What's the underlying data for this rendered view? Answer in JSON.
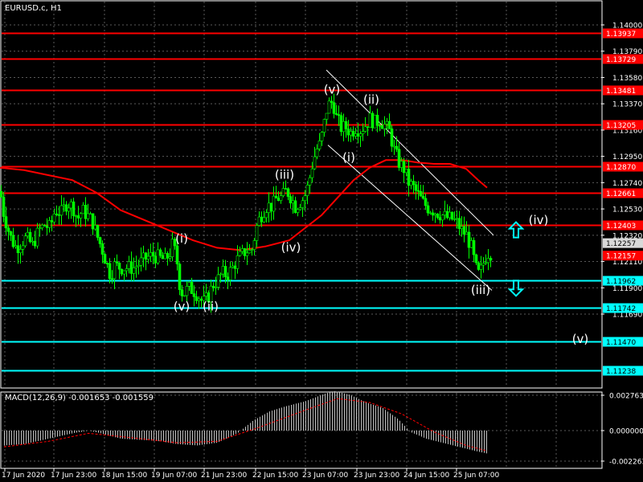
{
  "header": {
    "symbol": "EURUSD.c, H1"
  },
  "indicator": {
    "label": "MACD(12,26,9) -0.001653 -0.001559"
  },
  "chart_data": [
    {
      "type": "candlestick",
      "symbol": "EURUSD.c",
      "timeframe": "H1",
      "ylim": [
        1.1108,
        1.141
      ],
      "y_ticks": [
        "1.14000",
        "1.13790",
        "1.13580",
        "1.13370",
        "1.13160",
        "1.12950",
        "1.12740",
        "1.12530",
        "1.12320",
        "1.12110",
        "1.11900",
        "1.11690"
      ],
      "x_ticks": [
        "17 Jun 2020",
        "17 Jun 23:00",
        "18 Jun 15:00",
        "19 Jun 07:00",
        "21 Jun 23:00",
        "22 Jun 15:00",
        "23 Jun 07:00",
        "23 Jun 23:00",
        "24 Jun 15:00",
        "25 Jun 07:00"
      ],
      "current_price": "1.12157",
      "current_price_alt": "1.12257",
      "levels": [
        {
          "price": 1.13937,
          "label": "1.13937",
          "color": "#ff0000"
        },
        {
          "price": 1.13729,
          "label": "1.13729",
          "color": "#ff0000"
        },
        {
          "price": 1.13481,
          "label": "1.13481",
          "color": "#ff0000"
        },
        {
          "price": 1.13205,
          "label": "1.13205",
          "color": "#ff0000"
        },
        {
          "price": 1.1287,
          "label": "1.12870",
          "color": "#ff0000"
        },
        {
          "price": 1.12661,
          "label": "1.12661",
          "color": "#ff0000"
        },
        {
          "price": 1.12403,
          "label": "1.12403",
          "color": "#ff0000"
        },
        {
          "price": 1.11962,
          "label": "1.11962",
          "color": "#00ffff"
        },
        {
          "price": 1.11742,
          "label": "1.11742",
          "color": "#00ffff"
        },
        {
          "price": 1.1147,
          "label": "1.11470",
          "color": "#00ffff"
        },
        {
          "price": 1.11238,
          "label": "1.11238",
          "color": "#00ffff"
        }
      ],
      "price_path": [
        [
          0,
          1.1267
        ],
        [
          4,
          1.125
        ],
        [
          9,
          1.1238
        ],
        [
          14,
          1.1228
        ],
        [
          20,
          1.1222
        ],
        [
          26,
          1.1226
        ],
        [
          32,
          1.123
        ],
        [
          40,
          1.1224
        ],
        [
          48,
          1.1236
        ],
        [
          55,
          1.124
        ],
        [
          62,
          1.1238
        ],
        [
          68,
          1.1252
        ],
        [
          76,
          1.125
        ],
        [
          83,
          1.1258
        ],
        [
          90,
          1.1255
        ],
        [
          96,
          1.1245
        ],
        [
          102,
          1.1252
        ],
        [
          108,
          1.1248
        ],
        [
          114,
          1.1244
        ],
        [
          120,
          1.1232
        ],
        [
          126,
          1.1222
        ],
        [
          132,
          1.121
        ],
        [
          137,
          1.12
        ],
        [
          142,
          1.1208
        ],
        [
          150,
          1.1206
        ],
        [
          158,
          1.1206
        ],
        [
          166,
          1.1206
        ],
        [
          174,
          1.121
        ],
        [
          182,
          1.1214
        ],
        [
          190,
          1.1216
        ],
        [
          198,
          1.1214
        ],
        [
          205,
          1.1212
        ],
        [
          211,
          1.1218
        ],
        [
          215,
          1.1226
        ],
        [
          220,
          1.121
        ],
        [
          224,
          1.1188
        ],
        [
          228,
          1.1185
        ],
        [
          234,
          1.119
        ],
        [
          240,
          1.1188
        ],
        [
          246,
          1.1184
        ],
        [
          252,
          1.1178
        ],
        [
          258,
          1.1182
        ],
        [
          264,
          1.1192
        ],
        [
          270,
          1.1196
        ],
        [
          276,
          1.1202
        ],
        [
          282,
          1.12
        ],
        [
          288,
          1.1205
        ],
        [
          294,
          1.1212
        ],
        [
          300,
          1.1216
        ],
        [
          306,
          1.122
        ],
        [
          312,
          1.1218
        ],
        [
          316,
          1.123
        ],
        [
          320,
          1.1242
        ],
        [
          326,
          1.125
        ],
        [
          332,
          1.1256
        ],
        [
          338,
          1.1255
        ],
        [
          344,
          1.1262
        ],
        [
          350,
          1.1262
        ],
        [
          356,
          1.1268
        ],
        [
          362,
          1.1262
        ],
        [
          367,
          1.1255
        ],
        [
          372,
          1.1258
        ],
        [
          378,
          1.1262
        ],
        [
          383,
          1.1272
        ],
        [
          388,
          1.1288
        ],
        [
          393,
          1.13
        ],
        [
          398,
          1.1305
        ],
        [
          402,
          1.1318
        ],
        [
          406,
          1.1332
        ],
        [
          410,
          1.1338
        ],
        [
          414,
          1.1338
        ],
        [
          418,
          1.1326
        ],
        [
          424,
          1.1318
        ],
        [
          430,
          1.1318
        ],
        [
          436,
          1.1314
        ],
        [
          442,
          1.1318
        ],
        [
          448,
          1.1316
        ],
        [
          454,
          1.132
        ],
        [
          460,
          1.1325
        ],
        [
          466,
          1.1322
        ],
        [
          472,
          1.1324
        ],
        [
          478,
          1.132
        ],
        [
          484,
          1.1315
        ],
        [
          490,
          1.13
        ],
        [
          496,
          1.129
        ],
        [
          502,
          1.1285
        ],
        [
          508,
          1.1274
        ],
        [
          514,
          1.127
        ],
        [
          520,
          1.1264
        ],
        [
          526,
          1.1258
        ],
        [
          532,
          1.1254
        ],
        [
          538,
          1.1252
        ],
        [
          544,
          1.125
        ],
        [
          550,
          1.1248
        ],
        [
          556,
          1.1246
        ],
        [
          562,
          1.1245
        ],
        [
          568,
          1.1242
        ],
        [
          574,
          1.1236
        ],
        [
          580,
          1.1232
        ],
        [
          586,
          1.1222
        ],
        [
          590,
          1.121
        ],
        [
          594,
          1.12
        ],
        [
          598,
          1.1204
        ],
        [
          602,
          1.1212
        ],
        [
          606,
          1.1218
        ],
        [
          610,
          1.1218
        ]
      ],
      "moving_average": [
        [
          0,
          1.1286
        ],
        [
          30,
          1.1284
        ],
        [
          60,
          1.128
        ],
        [
          90,
          1.1276
        ],
        [
          120,
          1.1266
        ],
        [
          150,
          1.1252
        ],
        [
          180,
          1.1244
        ],
        [
          210,
          1.1236
        ],
        [
          240,
          1.1228
        ],
        [
          270,
          1.1222
        ],
        [
          300,
          1.122
        ],
        [
          330,
          1.1223
        ],
        [
          360,
          1.1228
        ],
        [
          380,
          1.1238
        ],
        [
          400,
          1.1248
        ],
        [
          420,
          1.1262
        ],
        [
          440,
          1.1276
        ],
        [
          460,
          1.1286
        ],
        [
          480,
          1.1292
        ],
        [
          500,
          1.1292
        ],
        [
          520,
          1.129
        ],
        [
          540,
          1.1289
        ],
        [
          560,
          1.1289
        ],
        [
          580,
          1.1285
        ],
        [
          595,
          1.1276
        ],
        [
          606,
          1.127
        ]
      ],
      "channel_lines": [
        {
          "from": [
            406,
            1.1364
          ],
          "to": [
            614,
            1.1232
          ]
        },
        {
          "from": [
            408,
            1.1304
          ],
          "to": [
            612,
            1.1188
          ]
        }
      ],
      "wave_labels": [
        {
          "text": "(i)",
          "x": 226,
          "price": 1.1226
        },
        {
          "text": "(v)",
          "x": 226,
          "price": 1.1172
        },
        {
          "text": "(ii)",
          "x": 262,
          "price": 1.1172
        },
        {
          "text": "(iii)",
          "x": 354,
          "price": 1.1277
        },
        {
          "text": "(iv)",
          "x": 362,
          "price": 1.1219
        },
        {
          "text": "(v)",
          "x": 413,
          "price": 1.1345
        },
        {
          "text": "(ii)",
          "x": 462,
          "price": 1.1337
        },
        {
          "text": "(i)",
          "x": 434,
          "price": 1.1291
        },
        {
          "text": "(iii)",
          "x": 598,
          "price": 1.1185
        },
        {
          "text": "(iv)",
          "x": 670,
          "price": 1.1241
        },
        {
          "text": "(v)",
          "x": 722,
          "price": 1.1146
        }
      ],
      "arrows": [
        {
          "direction": "up",
          "x": 642,
          "price": 1.1236,
          "color": "#00ffff"
        },
        {
          "direction": "down",
          "x": 642,
          "price": 1.119,
          "color": "#00ffff"
        }
      ],
      "candle_color": "#00ff00",
      "ma_color": "#ff0000",
      "grid": true
    },
    {
      "type": "histogram",
      "name": "MACD(12,26,9)",
      "macd": -0.001653,
      "signal": -0.001559,
      "ylim": [
        -0.00263,
        0.00276
      ],
      "y_ticks": [
        "0.002763",
        "0.000000",
        "-0.002263"
      ],
      "histogram": [
        [
          5,
          -0.0011
        ],
        [
          30,
          -0.001
        ],
        [
          60,
          -0.0006
        ],
        [
          90,
          -0.0002
        ],
        [
          110,
          0.0
        ],
        [
          125,
          -0.0002
        ],
        [
          150,
          -0.0006
        ],
        [
          180,
          -0.0007
        ],
        [
          200,
          -0.0008
        ],
        [
          220,
          -0.001
        ],
        [
          245,
          -0.0011
        ],
        [
          270,
          -0.0009
        ],
        [
          295,
          -0.0002
        ],
        [
          315,
          0.0008
        ],
        [
          335,
          0.0015
        ],
        [
          355,
          0.0019
        ],
        [
          380,
          0.0023
        ],
        [
          400,
          0.0028
        ],
        [
          415,
          0.0031
        ],
        [
          435,
          0.0028
        ],
        [
          455,
          0.0022
        ],
        [
          475,
          0.0018
        ],
        [
          495,
          0.0009
        ],
        [
          510,
          -0.0001
        ],
        [
          530,
          -0.0006
        ],
        [
          550,
          -0.0009
        ],
        [
          570,
          -0.0012
        ],
        [
          590,
          -0.0015
        ],
        [
          606,
          -0.0017
        ]
      ],
      "signal_line": [
        [
          5,
          -0.0012
        ],
        [
          60,
          -0.0008
        ],
        [
          110,
          -0.0002
        ],
        [
          160,
          -0.0005
        ],
        [
          220,
          -0.0009
        ],
        [
          270,
          -0.0008
        ],
        [
          320,
          0.0002
        ],
        [
          380,
          0.0016
        ],
        [
          420,
          0.0025
        ],
        [
          460,
          0.0022
        ],
        [
          500,
          0.0013
        ],
        [
          540,
          -0.0001
        ],
        [
          580,
          -0.0011
        ],
        [
          606,
          -0.0015
        ]
      ]
    }
  ]
}
